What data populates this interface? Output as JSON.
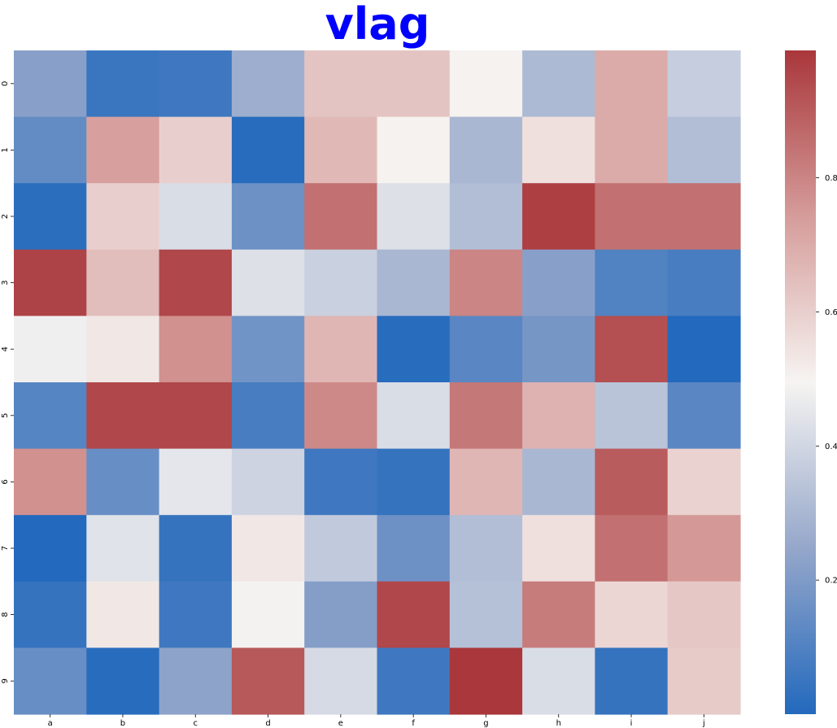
{
  "chart_data": {
    "type": "heatmap",
    "title": "vlag",
    "colormap": "vlag",
    "x_labels": [
      "a",
      "b",
      "c",
      "d",
      "e",
      "f",
      "g",
      "h",
      "i",
      "j"
    ],
    "y_labels": [
      "0",
      "1",
      "2",
      "3",
      "4",
      "5",
      "6",
      "7",
      "8",
      "9"
    ],
    "values": [
      [
        0.22,
        0.05,
        0.06,
        0.27,
        0.63,
        0.63,
        0.5,
        0.31,
        0.7,
        0.37
      ],
      [
        0.14,
        0.73,
        0.6,
        0.01,
        0.66,
        0.5,
        0.3,
        0.55,
        0.7,
        0.32
      ],
      [
        0.02,
        0.6,
        0.42,
        0.16,
        0.85,
        0.43,
        0.32,
        0.97,
        0.85,
        0.85
      ],
      [
        0.96,
        0.65,
        0.95,
        0.43,
        0.38,
        0.3,
        0.8,
        0.22,
        0.1,
        0.08
      ],
      [
        0.48,
        0.53,
        0.77,
        0.17,
        0.67,
        0.01,
        0.12,
        0.18,
        0.93,
        0.0
      ],
      [
        0.11,
        0.95,
        0.95,
        0.08,
        0.79,
        0.42,
        0.83,
        0.68,
        0.34,
        0.12
      ],
      [
        0.77,
        0.15,
        0.45,
        0.39,
        0.06,
        0.04,
        0.67,
        0.3,
        0.9,
        0.59
      ],
      [
        0.0,
        0.44,
        0.04,
        0.53,
        0.36,
        0.16,
        0.32,
        0.55,
        0.85,
        0.75
      ],
      [
        0.04,
        0.53,
        0.06,
        0.49,
        0.21,
        0.95,
        0.33,
        0.82,
        0.58,
        0.62
      ],
      [
        0.15,
        0.01,
        0.23,
        0.91,
        0.41,
        0.06,
        0.99,
        0.42,
        0.04,
        0.61
      ]
    ],
    "colorbar": {
      "ticks": [
        0.2,
        0.4,
        0.6,
        0.8
      ],
      "tick_labels": [
        "0.2",
        "0.4",
        "0.6",
        "0.8"
      ],
      "range": [
        0.0,
        0.99
      ]
    }
  }
}
